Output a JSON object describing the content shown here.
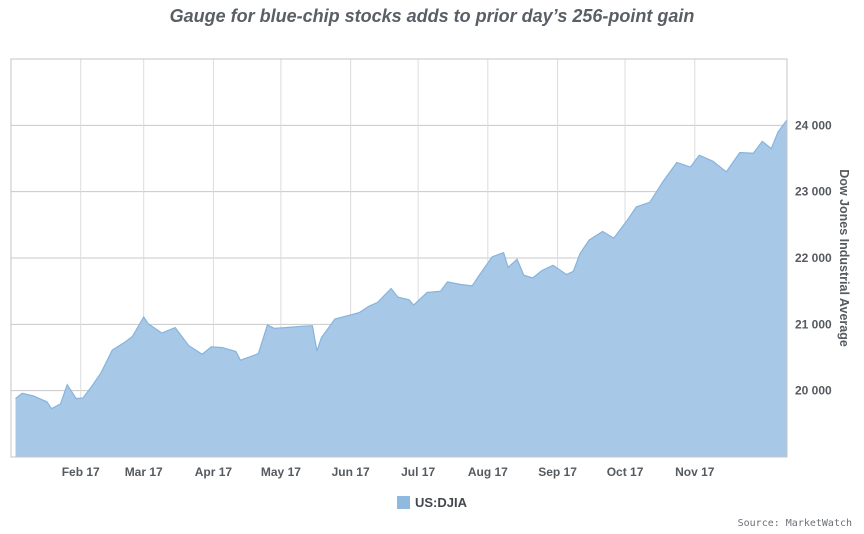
{
  "chart_data": {
    "type": "area",
    "title": "Gauge for blue-chip stocks adds to prior day’s 256-point gain",
    "ylabel": "Dow Jones Industrial Average",
    "xlabel": "",
    "x_ticks": [
      "Feb 17",
      "Mar 17",
      "Apr 17",
      "May 17",
      "Jun 17",
      "Jul 17",
      "Aug 17",
      "Sep 17",
      "Oct 17",
      "Nov 17"
    ],
    "y_ticks": [
      20000,
      21000,
      22000,
      23000,
      24000
    ],
    "y_tick_labels": [
      "20 000",
      "21 000",
      "22 000",
      "23 000",
      "24 000"
    ],
    "ylim": [
      19000,
      25000
    ],
    "grid": true,
    "legend_position": "bottom-center",
    "colors": {
      "fill": "#a7c8e7",
      "stroke": "#87b4dc"
    },
    "series": [
      {
        "name": "US:DJIA",
        "x": [
          "2017-01-03",
          "2017-01-06",
          "2017-01-11",
          "2017-01-17",
          "2017-01-19",
          "2017-01-23",
          "2017-01-26",
          "2017-01-30",
          "2017-02-02",
          "2017-02-06",
          "2017-02-10",
          "2017-02-15",
          "2017-02-21",
          "2017-02-24",
          "2017-03-01",
          "2017-03-03",
          "2017-03-09",
          "2017-03-15",
          "2017-03-21",
          "2017-03-27",
          "2017-03-31",
          "2017-04-05",
          "2017-04-11",
          "2017-04-13",
          "2017-04-18",
          "2017-04-21",
          "2017-04-25",
          "2017-04-28",
          "2017-05-03",
          "2017-05-10",
          "2017-05-15",
          "2017-05-17",
          "2017-05-19",
          "2017-05-25",
          "2017-06-01",
          "2017-06-05",
          "2017-06-09",
          "2017-06-13",
          "2017-06-19",
          "2017-06-22",
          "2017-06-27",
          "2017-06-29",
          "2017-07-05",
          "2017-07-11",
          "2017-07-14",
          "2017-07-20",
          "2017-07-25",
          "2017-07-28",
          "2017-08-03",
          "2017-08-08",
          "2017-08-10",
          "2017-08-14",
          "2017-08-17",
          "2017-08-21",
          "2017-08-25",
          "2017-08-30",
          "2017-09-05",
          "2017-09-08",
          "2017-09-11",
          "2017-09-15",
          "2017-09-21",
          "2017-09-26",
          "2017-10-02",
          "2017-10-06",
          "2017-10-12",
          "2017-10-18",
          "2017-10-24",
          "2017-10-30",
          "2017-11-03",
          "2017-11-09",
          "2017-11-15",
          "2017-11-21",
          "2017-11-27",
          "2017-12-01",
          "2017-12-05",
          "2017-12-08",
          "2017-12-12"
        ],
        "values": [
          19880,
          19960,
          19920,
          19830,
          19730,
          19800,
          20090,
          19880,
          19890,
          20070,
          20270,
          20610,
          20740,
          20820,
          21110,
          21010,
          20870,
          20950,
          20680,
          20550,
          20660,
          20650,
          20590,
          20460,
          20520,
          20560,
          20990,
          20940,
          20950,
          20970,
          20980,
          20600,
          20800,
          21080,
          21140,
          21180,
          21270,
          21330,
          21540,
          21410,
          21370,
          21290,
          21480,
          21500,
          21640,
          21600,
          21580,
          21730,
          22020,
          22080,
          21860,
          21980,
          21740,
          21700,
          21810,
          21890,
          21750,
          21800,
          22070,
          22270,
          22400,
          22300,
          22570,
          22770,
          22840,
          23160,
          23440,
          23370,
          23550,
          23460,
          23300,
          23590,
          23580,
          23760,
          23650,
          23900,
          24080
        ]
      }
    ],
    "legend_label": "US:DJIA",
    "source": "Source: MarketWatch"
  }
}
